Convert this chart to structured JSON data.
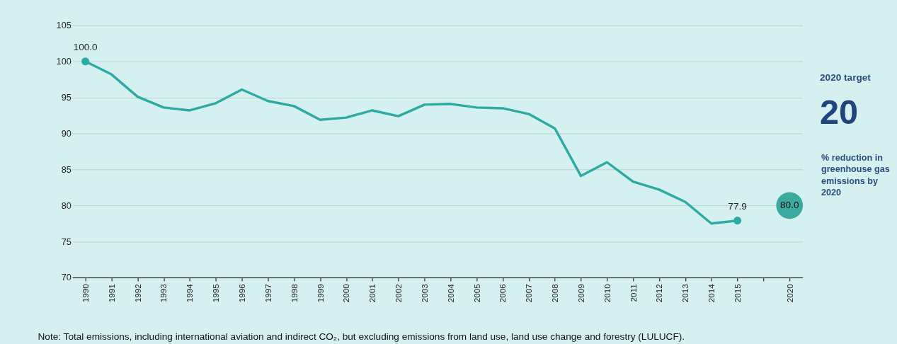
{
  "chart_data": {
    "type": "line",
    "categories": [
      "1990",
      "1991",
      "1992",
      "1993",
      "1994",
      "1995",
      "1996",
      "1997",
      "1998",
      "1999",
      "2000",
      "2001",
      "2002",
      "2003",
      "2004",
      "2005",
      "2006",
      "2007",
      "2008",
      "2009",
      "2010",
      "2011",
      "2012",
      "2013",
      "2014",
      "2015",
      null,
      "2020"
    ],
    "series": [
      {
        "color": "#2eaaa5",
        "values": [
          100.0,
          98.2,
          95.1,
          93.6,
          93.2,
          94.2,
          96.1,
          94.5,
          93.8,
          91.9,
          92.2,
          93.2,
          92.4,
          94.0,
          94.1,
          93.6,
          93.5,
          92.7,
          90.7,
          84.1,
          86.0,
          83.3,
          82.2,
          80.5,
          77.5,
          77.9,
          null,
          null
        ],
        "value_labels": [
          "100.0",
          null,
          null,
          null,
          null,
          null,
          null,
          null,
          null,
          null,
          null,
          null,
          null,
          null,
          null,
          null,
          null,
          null,
          null,
          null,
          null,
          null,
          null,
          null,
          null,
          "77.9",
          null,
          null
        ]
      },
      {
        "type": "scatter",
        "color": "#3aa99f",
        "values": [
          null,
          null,
          null,
          null,
          null,
          null,
          null,
          null,
          null,
          null,
          null,
          null,
          null,
          null,
          null,
          null,
          null,
          null,
          null,
          null,
          null,
          null,
          null,
          null,
          null,
          null,
          null,
          80.0
        ],
        "value_labels": [
          null,
          null,
          null,
          null,
          null,
          null,
          null,
          null,
          null,
          null,
          null,
          null,
          null,
          null,
          null,
          null,
          null,
          null,
          null,
          null,
          null,
          null,
          null,
          null,
          null,
          null,
          null,
          "80.0"
        ]
      }
    ],
    "ylim": [
      70,
      105
    ],
    "yticks": [
      70,
      75,
      80,
      85,
      90,
      95,
      100,
      105
    ],
    "grid": "y",
    "annotations": [
      "2020 target",
      "20",
      "% reduction in\ngreenhouse gas\nemissions by\n2020",
      "Note: Total emissions, including international aviation and indirect CO₂, but excluding emissions from land use, land use change and forestry (LULUCF)."
    ]
  }
}
